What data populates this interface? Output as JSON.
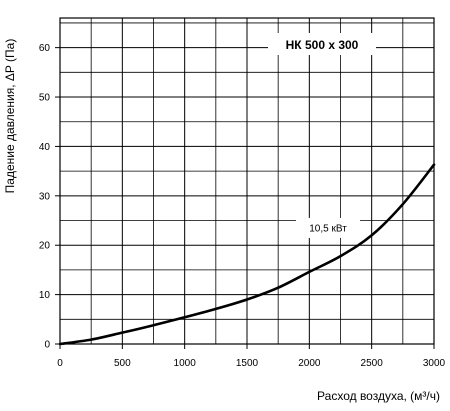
{
  "chart_data": {
    "type": "line",
    "title": "НК 500 х 300",
    "xlabel": "Расход воздуха, (м³/ч)",
    "ylabel": "Падение давления, ΔP (Па)",
    "xlim": [
      0,
      3000
    ],
    "ylim": [
      0,
      66
    ],
    "xticks": [
      0,
      500,
      1000,
      1500,
      2000,
      2500,
      3000
    ],
    "yticks": [
      0,
      10,
      20,
      30,
      40,
      50,
      60
    ],
    "x_minor_step": 250,
    "y_minor_step": 5,
    "grid": true,
    "series": [
      {
        "x": [
          0,
          250,
          500,
          750,
          1000,
          1250,
          1500,
          1750,
          2000,
          2250,
          2500,
          2750,
          3000
        ],
        "y": [
          0,
          0.9,
          2.3,
          3.8,
          5.4,
          7.1,
          9,
          11.4,
          14.6,
          17.8,
          22,
          28.3,
          36.3
        ]
      }
    ],
    "annotation": {
      "text": "10,5  кВт",
      "x": 2150,
      "y": 23.5
    }
  }
}
